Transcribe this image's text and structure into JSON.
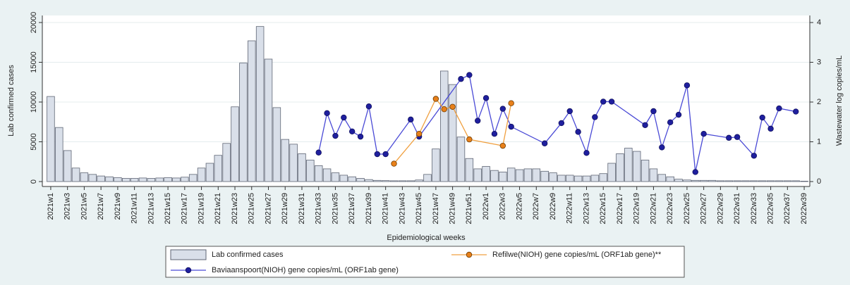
{
  "chart_data": {
    "type": "bar",
    "x_label": "Epidemiological weeks",
    "y_label": "Lab  confirmed cases",
    "y2_label": "Wastewater log copies/mL",
    "categories": [
      "2021w1",
      null,
      "2021w3",
      null,
      "2021w5",
      null,
      "2021w7",
      null,
      "2021w9",
      null,
      "2021w11",
      null,
      "2021w13",
      null,
      "2021w15",
      null,
      "2021w17",
      null,
      "2021w19",
      null,
      "2021w21",
      null,
      "2021w23",
      null,
      "2021w25",
      null,
      "2021w27",
      null,
      "2021w29",
      null,
      "2021w31",
      null,
      "2021w33",
      null,
      "2021w35",
      null,
      "2021w37",
      null,
      "2021w39",
      null,
      "2021w41",
      null,
      "2021w43",
      null,
      "2021w45",
      null,
      "2021w47",
      null,
      "2021w49",
      null,
      "2021w51",
      null,
      "2022w1",
      null,
      "2022w3",
      null,
      "2022w5",
      null,
      "2022w7",
      null,
      "2022w9",
      null,
      "2022w11",
      null,
      "2022w13",
      null,
      "2022w15",
      null,
      "2022w17",
      null,
      "2022w19",
      null,
      "2022w21",
      null,
      "2022w23",
      null,
      "2022w25",
      null,
      "2022w27",
      null,
      "2022w29",
      null,
      "2022w31",
      null,
      "2022w33",
      null,
      "2022w35",
      null,
      "2022w37",
      null,
      "2022w39"
    ],
    "series": [
      {
        "name": "Lab  confirmed cases",
        "type": "bar",
        "axis": "y",
        "color": "#d9dfe9",
        "values": [
          10700,
          6800,
          3900,
          1700,
          1100,
          900,
          700,
          600,
          500,
          400,
          400,
          450,
          400,
          450,
          500,
          450,
          550,
          900,
          1700,
          2300,
          3300,
          4800,
          9400,
          14900,
          17700,
          19500,
          15400,
          9300,
          5300,
          4700,
          3500,
          2700,
          2000,
          1600,
          1100,
          800,
          600,
          400,
          250,
          150,
          120,
          100,
          100,
          100,
          200,
          900,
          4100,
          13900,
          12200,
          5600,
          2900,
          1600,
          1900,
          1400,
          1200,
          1700,
          1500,
          1600,
          1600,
          1300,
          1100,
          800,
          800,
          700,
          700,
          800,
          1000,
          2300,
          3500,
          4200,
          3800,
          2700,
          1600,
          900,
          600,
          300,
          200,
          150,
          150,
          150,
          100,
          100,
          100,
          100,
          100,
          100,
          100,
          100,
          100,
          100,
          50
        ]
      },
      {
        "name": "Baviaanspoort(NIOH) gene copies/mL (ORF1ab gene)",
        "type": "line",
        "axis": "y2",
        "color": "#1f1f9e",
        "values": [
          null,
          null,
          null,
          null,
          null,
          null,
          null,
          null,
          null,
          null,
          null,
          null,
          null,
          null,
          null,
          null,
          null,
          null,
          null,
          null,
          null,
          null,
          null,
          null,
          null,
          null,
          null,
          null,
          null,
          null,
          null,
          null,
          0.73,
          1.72,
          1.15,
          1.61,
          1.26,
          1.13,
          1.89,
          0.69,
          0.69,
          null,
          null,
          1.56,
          1.13,
          null,
          null,
          null,
          null,
          2.58,
          2.68,
          1.53,
          2.1,
          1.2,
          1.83,
          1.38,
          null,
          null,
          null,
          0.96,
          null,
          1.47,
          1.77,
          1.25,
          0.72,
          1.62,
          2.01,
          2.01,
          null,
          null,
          null,
          1.42,
          1.77,
          0.86,
          1.49,
          1.68,
          2.42,
          0.24,
          1.2,
          null,
          null,
          1.1,
          1.12,
          null,
          0.65,
          1.61,
          1.33,
          1.84,
          null,
          1.76,
          null
        ]
      },
      {
        "name": "Refilwe(NIOH) gene copies/mL (ORF1ab gene)**",
        "type": "line",
        "axis": "y2",
        "color": "#f0a040",
        "values": [
          null,
          null,
          null,
          null,
          null,
          null,
          null,
          null,
          null,
          null,
          null,
          null,
          null,
          null,
          null,
          null,
          null,
          null,
          null,
          null,
          null,
          null,
          null,
          null,
          null,
          null,
          null,
          null,
          null,
          null,
          null,
          null,
          null,
          null,
          null,
          null,
          null,
          null,
          null,
          null,
          null,
          0.45,
          null,
          null,
          1.2,
          null,
          2.08,
          1.82,
          1.88,
          null,
          1.06,
          null,
          null,
          null,
          0.9,
          1.97,
          null,
          null,
          null,
          null,
          null,
          null,
          null,
          null,
          null,
          null,
          null,
          null,
          null,
          null,
          null,
          null,
          null,
          null,
          null,
          null,
          null,
          null,
          null,
          null,
          null,
          null,
          null,
          null,
          null,
          null,
          null,
          null,
          null,
          null,
          null
        ]
      }
    ],
    "ylim": [
      0,
      20000
    ],
    "yticks": [
      0,
      5000,
      10000,
      15000,
      20000
    ],
    "y2lim": [
      0,
      4
    ],
    "y2ticks": [
      0,
      1,
      2,
      3,
      4
    ],
    "grid": true
  }
}
